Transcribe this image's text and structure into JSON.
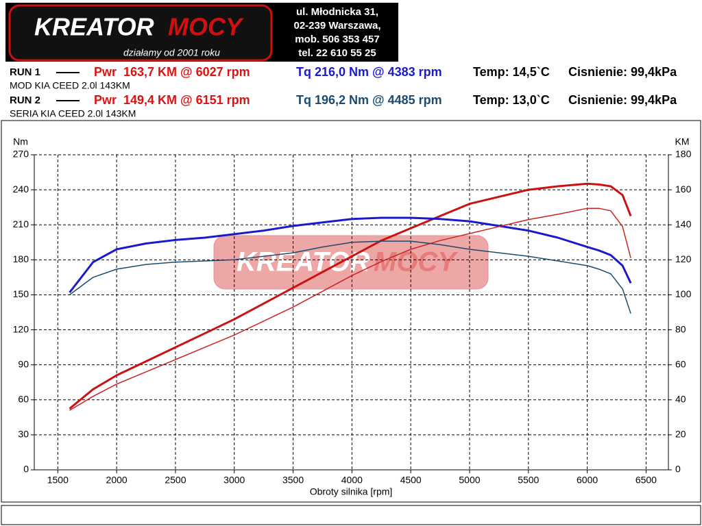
{
  "header": {
    "logo_left": "KREATOR",
    "logo_right": "MOCY",
    "tagline": "działamy od 2001 roku",
    "address": [
      "ul. Młodnicka 31,",
      "02-239  Warszawa,",
      "mob.  506 353 457",
      "tel.  22 610 55 25"
    ]
  },
  "runs": [
    {
      "label": "RUN 1",
      "power": "Pwr  163,7 KM @ 6027 rpm",
      "torque": "Tq 216,0 Nm @ 4383 rpm",
      "temp": "Temp: 14,5`C",
      "pressure": "Cisnienie: 99,4kPa",
      "description": "MOD KIA CEED 2.0l 143KM"
    },
    {
      "label": "RUN 2",
      "power": "Pwr  149,4 KM @ 6151 rpm",
      "torque": "Tq 196,2 Nm @ 4485 rpm",
      "temp": "Temp: 13,0`C",
      "pressure": "Cisnienie: 99,4kPa",
      "description": "SERIA KIA CEED 2.0l 143KM"
    }
  ],
  "chart_data": {
    "type": "line",
    "y_label": "Nm",
    "y2_label": "KM",
    "x_label": "Obroty silnika [rpm]",
    "x": [
      1600,
      1800,
      2000,
      2250,
      2500,
      2750,
      3000,
      3250,
      3500,
      3750,
      4000,
      4250,
      4500,
      4750,
      5000,
      5250,
      5500,
      5750,
      6000,
      6100,
      6200,
      6300,
      6370
    ],
    "series": [
      {
        "color": "#cc1111",
        "width": 3,
        "axis": "y2",
        "values": [
          35,
          46,
          54,
          62,
          70,
          78,
          86,
          95,
          104,
          113,
          122,
          131,
          138,
          145,
          152,
          156,
          160,
          162,
          163.5,
          163,
          162,
          157,
          145
        ]
      },
      {
        "color": "#1a1acc",
        "width": 3,
        "axis": "y",
        "values": [
          152,
          178,
          189,
          194,
          197,
          199,
          202,
          205,
          209,
          212,
          215,
          216,
          216,
          215,
          213,
          209,
          205,
          199,
          191,
          188,
          184,
          175,
          160
        ]
      },
      {
        "color": "#cc2222",
        "width": 1.5,
        "axis": "y2",
        "values": [
          34,
          42,
          49,
          56,
          63,
          70,
          77,
          85,
          93,
          102,
          111,
          119,
          126,
          131,
          135,
          139,
          143,
          146,
          149.4,
          149.4,
          148,
          139,
          121
        ]
      },
      {
        "color": "#1a4a6e",
        "width": 1.5,
        "axis": "y",
        "values": [
          150,
          165,
          172,
          176,
          178,
          179,
          180,
          183,
          186,
          191,
          195,
          196,
          196,
          193,
          189,
          186,
          183,
          179,
          175,
          172,
          168,
          155,
          134
        ]
      }
    ],
    "xlim": [
      1300,
      6690
    ],
    "ylim": [
      0,
      270
    ],
    "y2lim": [
      0,
      180
    ],
    "xticks": [
      1500,
      2000,
      2500,
      3000,
      3500,
      4000,
      4500,
      5000,
      5500,
      6000,
      6500
    ],
    "yticks": [
      0,
      30,
      60,
      90,
      120,
      150,
      180,
      210,
      240,
      270
    ],
    "y2ticks": [
      0,
      20,
      40,
      60,
      80,
      100,
      120,
      140,
      160,
      180
    ],
    "grid": true
  }
}
